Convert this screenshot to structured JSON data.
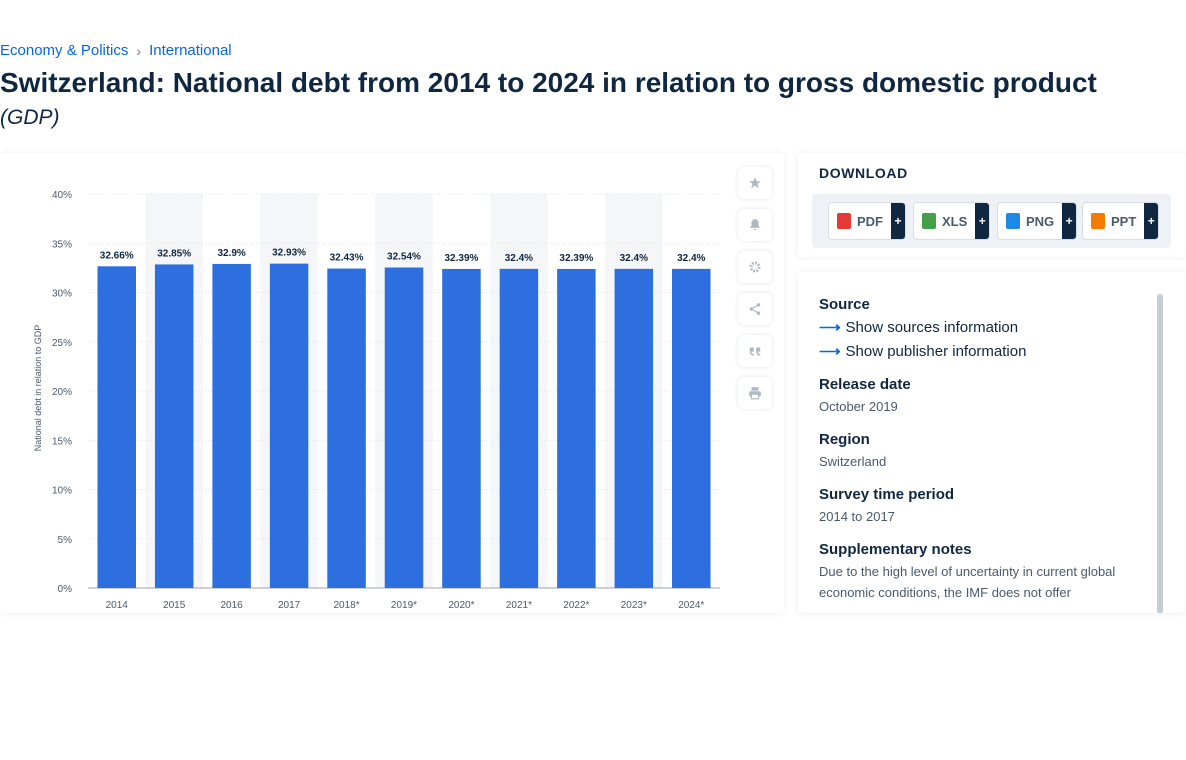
{
  "breadcrumb": {
    "items": [
      "Economy & Politics",
      "International"
    ],
    "separator": "›"
  },
  "title": "Switzerland: National debt from 2014 to 2024 in relation to gross domestic product",
  "subtitle": "(GDP)",
  "tools": [
    "star-icon",
    "bell-icon",
    "gear-icon",
    "share-icon",
    "quote-icon",
    "print-icon"
  ],
  "download": {
    "title": "DOWNLOAD",
    "buttons": [
      {
        "label": "PDF",
        "color": "#e53935",
        "plus": "+"
      },
      {
        "label": "XLS",
        "color": "#43a047",
        "plus": "+"
      },
      {
        "label": "PNG",
        "color": "#1e88e5",
        "plus": "+"
      },
      {
        "label": "PPT",
        "color": "#f57c00",
        "plus": "+"
      }
    ]
  },
  "info": {
    "source_label": "Source",
    "show_sources": "Show sources information",
    "show_publisher": "Show publisher information",
    "release_date_label": "Release date",
    "release_date": "October 2019",
    "region_label": "Region",
    "region": "Switzerland",
    "survey_period_label": "Survey time period",
    "survey_period": "2014 to 2017",
    "notes_label": "Supplementary notes",
    "notes": "Due to the high level of uncertainty in current global economic conditions, the IMF does not offer"
  },
  "colors": {
    "bar": "#2d6fde",
    "accent": "#0666e5",
    "column_shade": "#f5f6f8"
  },
  "chart_data": {
    "type": "bar",
    "categories": [
      "2014",
      "2015",
      "2016",
      "2017",
      "2018*",
      "2019*",
      "2020*",
      "2021*",
      "2022*",
      "2023*",
      "2024*"
    ],
    "values": [
      32.66,
      32.85,
      32.9,
      32.93,
      32.43,
      32.54,
      32.39,
      32.4,
      32.39,
      32.4,
      32.4
    ],
    "data_labels": [
      "32.66%",
      "32.85%",
      "32.9%",
      "32.93%",
      "32.43%",
      "32.54%",
      "32.39%",
      "32.4%",
      "32.39%",
      "32.4%",
      "32.4%"
    ],
    "y_ticks": [
      "0%",
      "5%",
      "10%",
      "15%",
      "20%",
      "25%",
      "30%",
      "35%",
      "40%"
    ],
    "ylabel": "National debt in relation to GDP",
    "xlabel": "",
    "ylim": [
      0,
      40
    ],
    "grid": true
  }
}
